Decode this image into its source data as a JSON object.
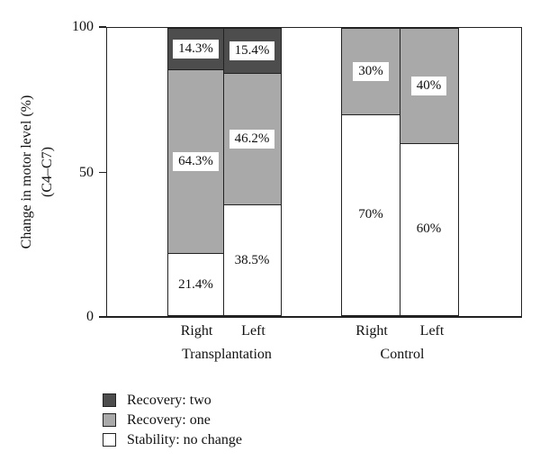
{
  "chart_data": {
    "type": "bar",
    "stacked": true,
    "orientation": "vertical",
    "ylabel_line1": "Change in motor level (%)",
    "ylabel_line2": "(C4–C7)",
    "ylim": [
      0,
      100
    ],
    "yticks": [
      0,
      50,
      100
    ],
    "grid": false,
    "legend_position": "bottom-left",
    "colors": {
      "recovery_two": "#4d4d4d",
      "recovery_one": "#a9a9a9",
      "stability": "#ffffff",
      "line": "#222222"
    },
    "legend": [
      {
        "label": "Recovery: two",
        "color": "#4d4d4d"
      },
      {
        "label": "Recovery: one",
        "color": "#a9a9a9"
      },
      {
        "label": "Stability: no change",
        "color": "#ffffff"
      }
    ],
    "groups": [
      {
        "label": "Transplantation",
        "bars": [
          {
            "label": "Right",
            "segments": [
              {
                "series": "Stability: no change",
                "value": 21.4,
                "text": "21.4%"
              },
              {
                "series": "Recovery: one",
                "value": 64.3,
                "text": "64.3%"
              },
              {
                "series": "Recovery: two",
                "value": 14.3,
                "text": "14.3%"
              }
            ]
          },
          {
            "label": "Left",
            "segments": [
              {
                "series": "Stability: no change",
                "value": 38.5,
                "text": "38.5%"
              },
              {
                "series": "Recovery: one",
                "value": 46.2,
                "text": "46.2%"
              },
              {
                "series": "Recovery: two",
                "value": 15.4,
                "text": "15.4%"
              }
            ]
          }
        ]
      },
      {
        "label": "Control",
        "bars": [
          {
            "label": "Right",
            "segments": [
              {
                "series": "Stability: no change",
                "value": 70,
                "text": "70%"
              },
              {
                "series": "Recovery: one",
                "value": 30,
                "text": "30%"
              }
            ]
          },
          {
            "label": "Left",
            "segments": [
              {
                "series": "Stability: no change",
                "value": 60,
                "text": "60%"
              },
              {
                "series": "Recovery: one",
                "value": 40,
                "text": "40%"
              }
            ]
          }
        ]
      }
    ]
  }
}
